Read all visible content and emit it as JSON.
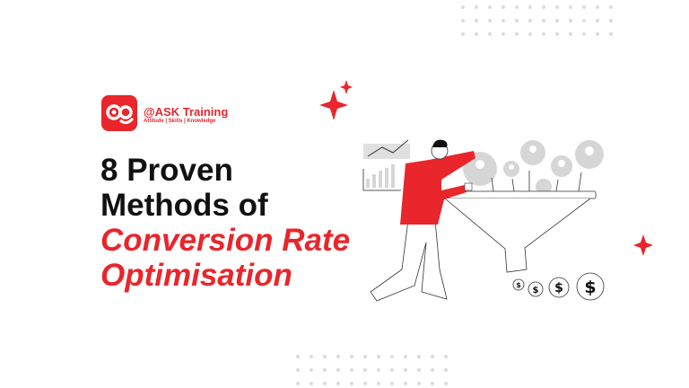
{
  "brand": {
    "name": "@ASK Training",
    "tagline": "Attitude | Skills | Knowledge",
    "logo_lettering": "ae",
    "color": "#e8262b"
  },
  "title": {
    "line1": "8 Proven",
    "line2": "Methods of",
    "line3": "Conversion Rate",
    "line4": "Optimisation"
  },
  "colors": {
    "accent": "#e8262b",
    "text": "#111111",
    "illustration_grey": "#d6d6d6",
    "dots": "#dcdcdc"
  },
  "illustration": {
    "icons": [
      "person-pushing-funnel",
      "line-chart-icon",
      "bar-chart-icon",
      "user-avatar-icon",
      "dollar-coin-icon",
      "sparkle-icon"
    ]
  }
}
